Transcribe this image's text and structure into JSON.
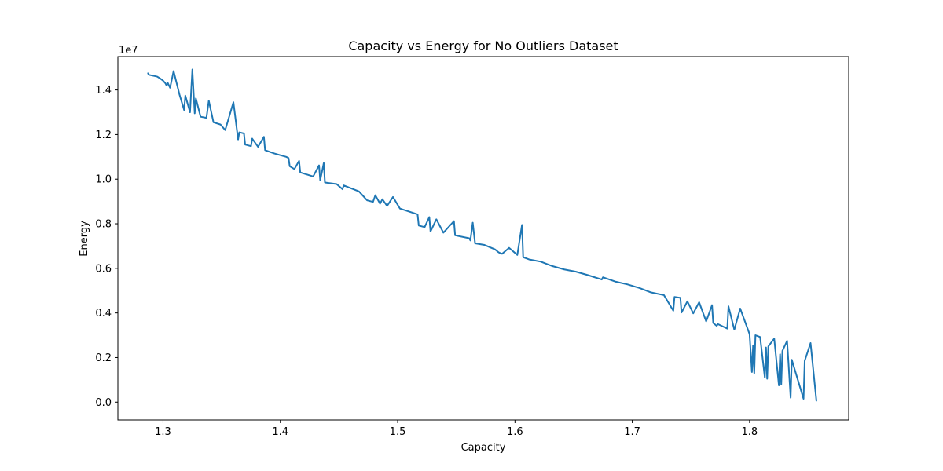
{
  "chart_data": {
    "type": "line",
    "title": "Capacity vs Energy for No Outliers Dataset",
    "xlabel": "Capacity",
    "ylabel": "Energy",
    "y_offset_label": "1e7",
    "xlim": [
      1.2615,
      1.8845
    ],
    "ylim": [
      -800000,
      15500000
    ],
    "x_ticks": [
      1.3,
      1.4,
      1.5,
      1.6,
      1.7,
      1.8
    ],
    "x_tick_labels": [
      "1.3",
      "1.4",
      "1.5",
      "1.6",
      "1.7",
      "1.8"
    ],
    "y_ticks": [
      0,
      2000000,
      4000000,
      6000000,
      8000000,
      10000000,
      12000000,
      14000000
    ],
    "y_tick_labels": [
      "0.0",
      "0.2",
      "0.4",
      "0.6",
      "0.8",
      "1.0",
      "1.2",
      "1.4"
    ],
    "grid": false,
    "series": [
      {
        "color": "#1f77b4",
        "points": [
          [
            1.287,
            14.76
          ],
          [
            1.288,
            14.68
          ],
          [
            1.295,
            14.6
          ],
          [
            1.298,
            14.5
          ],
          [
            1.3,
            14.42
          ],
          [
            1.302,
            14.3
          ],
          [
            1.303,
            14.2
          ],
          [
            1.304,
            14.32
          ],
          [
            1.306,
            14.1
          ],
          [
            1.309,
            14.85
          ],
          [
            1.314,
            13.8
          ],
          [
            1.318,
            13.1
          ],
          [
            1.319,
            13.75
          ],
          [
            1.323,
            13.0
          ],
          [
            1.325,
            14.92
          ],
          [
            1.327,
            12.95
          ],
          [
            1.328,
            13.62
          ],
          [
            1.332,
            12.8
          ],
          [
            1.337,
            12.75
          ],
          [
            1.339,
            13.52
          ],
          [
            1.343,
            12.55
          ],
          [
            1.349,
            12.45
          ],
          [
            1.353,
            12.2
          ],
          [
            1.36,
            13.45
          ],
          [
            1.364,
            11.78
          ],
          [
            1.365,
            12.1
          ],
          [
            1.369,
            12.05
          ],
          [
            1.37,
            11.55
          ],
          [
            1.375,
            11.48
          ],
          [
            1.376,
            11.82
          ],
          [
            1.381,
            11.45
          ],
          [
            1.386,
            11.9
          ],
          [
            1.387,
            11.3
          ],
          [
            1.395,
            11.15
          ],
          [
            1.405,
            11.0
          ],
          [
            1.407,
            10.95
          ],
          [
            1.408,
            10.58
          ],
          [
            1.412,
            10.45
          ],
          [
            1.416,
            10.82
          ],
          [
            1.417,
            10.3
          ],
          [
            1.428,
            10.12
          ],
          [
            1.433,
            10.62
          ],
          [
            1.434,
            9.95
          ],
          [
            1.437,
            10.72
          ],
          [
            1.438,
            9.85
          ],
          [
            1.448,
            9.78
          ],
          [
            1.453,
            9.55
          ],
          [
            1.454,
            9.72
          ],
          [
            1.467,
            9.45
          ],
          [
            1.474,
            9.05
          ],
          [
            1.479,
            8.98
          ],
          [
            1.481,
            9.28
          ],
          [
            1.485,
            8.9
          ],
          [
            1.487,
            9.1
          ],
          [
            1.491,
            8.8
          ],
          [
            1.496,
            9.2
          ],
          [
            1.502,
            8.68
          ],
          [
            1.517,
            8.42
          ],
          [
            1.518,
            7.92
          ],
          [
            1.523,
            7.85
          ],
          [
            1.527,
            8.3
          ],
          [
            1.528,
            7.65
          ],
          [
            1.533,
            8.2
          ],
          [
            1.539,
            7.6
          ],
          [
            1.548,
            8.12
          ],
          [
            1.549,
            7.48
          ],
          [
            1.561,
            7.35
          ],
          [
            1.562,
            7.25
          ],
          [
            1.564,
            8.05
          ],
          [
            1.566,
            7.12
          ],
          [
            1.574,
            7.05
          ],
          [
            1.583,
            6.85
          ],
          [
            1.586,
            6.72
          ],
          [
            1.589,
            6.65
          ],
          [
            1.595,
            6.92
          ],
          [
            1.602,
            6.6
          ],
          [
            1.606,
            7.95
          ],
          [
            1.607,
            6.5
          ],
          [
            1.612,
            6.4
          ],
          [
            1.622,
            6.3
          ],
          [
            1.632,
            6.1
          ],
          [
            1.642,
            5.95
          ],
          [
            1.652,
            5.85
          ],
          [
            1.662,
            5.7
          ],
          [
            1.674,
            5.5
          ],
          [
            1.675,
            5.6
          ],
          [
            1.686,
            5.4
          ],
          [
            1.696,
            5.28
          ],
          [
            1.706,
            5.12
          ],
          [
            1.716,
            4.92
          ],
          [
            1.727,
            4.8
          ],
          [
            1.735,
            4.1
          ],
          [
            1.736,
            4.72
          ],
          [
            1.741,
            4.68
          ],
          [
            1.742,
            4.02
          ],
          [
            1.747,
            4.52
          ],
          [
            1.752,
            3.98
          ],
          [
            1.757,
            4.48
          ],
          [
            1.763,
            3.62
          ],
          [
            1.768,
            4.35
          ],
          [
            1.769,
            3.55
          ],
          [
            1.772,
            3.42
          ],
          [
            1.773,
            3.5
          ],
          [
            1.781,
            3.3
          ],
          [
            1.782,
            4.3
          ],
          [
            1.787,
            3.25
          ],
          [
            1.792,
            4.2
          ],
          [
            1.8,
            3.05
          ],
          [
            1.802,
            1.35
          ],
          [
            1.803,
            2.55
          ],
          [
            1.804,
            1.3
          ],
          [
            1.805,
            3.0
          ],
          [
            1.809,
            2.92
          ],
          [
            1.813,
            1.1
          ],
          [
            1.814,
            2.45
          ],
          [
            1.815,
            1.05
          ],
          [
            1.816,
            2.5
          ],
          [
            1.821,
            2.85
          ],
          [
            1.825,
            0.75
          ],
          [
            1.826,
            2.15
          ],
          [
            1.827,
            0.8
          ],
          [
            1.828,
            2.3
          ],
          [
            1.832,
            2.75
          ],
          [
            1.835,
            0.2
          ],
          [
            1.836,
            1.9
          ],
          [
            1.846,
            0.15
          ],
          [
            1.847,
            1.85
          ],
          [
            1.852,
            2.65
          ],
          [
            1.857,
            0.05
          ]
        ]
      }
    ],
    "y_values_scale": 10000000
  }
}
